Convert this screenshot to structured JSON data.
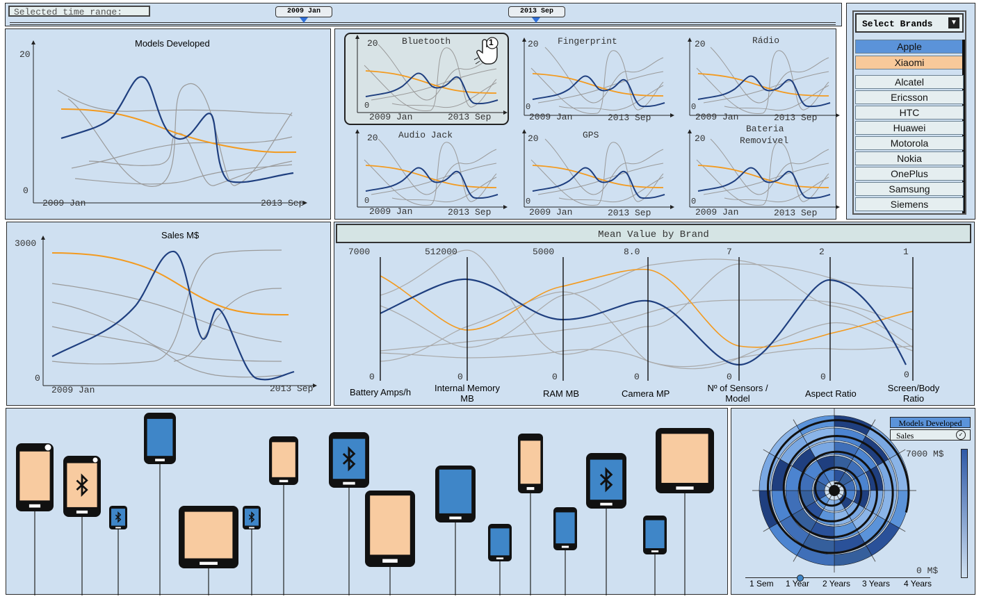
{
  "time_range": {
    "label": "Selected time range:",
    "start": "2009 Jan",
    "end": "2013 Sep"
  },
  "colors": {
    "panel": "#cfe0f1",
    "apple": "#1f3f7f",
    "xiaomi": "#f39a1e",
    "other": "#9a9a9a",
    "apple_highlight": "#5b93d9",
    "xiaomi_highlight": "#f8c99a",
    "device_blue": "#3f86c8",
    "device_peach": "#f8cba0"
  },
  "models_chart": {
    "title": "Models Developed",
    "y_max": "20",
    "y_min": "0",
    "x_start": "2009 Jan",
    "x_end": "2013 Sep"
  },
  "sales_chart": {
    "title": "Sales M$",
    "y_max": "3000",
    "y_min": "0",
    "x_start": "2009 Jan",
    "x_end": "2013 Sep"
  },
  "feature_charts": {
    "y_max": "20",
    "y_min": "0",
    "x_start": "2009 Jan",
    "x_end": "2013 Sep",
    "titles": [
      "Bluetooth",
      "Fingerprint",
      "Rádio",
      "Audio Jack",
      "GPS",
      "Bateria",
      "Removível"
    ],
    "pointer_badge": "1"
  },
  "brands": {
    "header": "Select Brands",
    "selected": [
      {
        "name": "Apple"
      },
      {
        "name": "Xiaomi"
      }
    ],
    "list": [
      "Alcatel",
      "Ericsson",
      "HTC",
      "Huawei",
      "Motorola",
      "Nokia",
      "OnePlus",
      "Samsung",
      "Siemens"
    ]
  },
  "mean_value": {
    "title": "Mean Value by Brand",
    "axes": [
      {
        "label": "Battery Amps/h",
        "max": "7000",
        "min": "0"
      },
      {
        "label": "Internal Memory MB",
        "max": "512000",
        "min": "0"
      },
      {
        "label": "RAM MB",
        "max": "5000",
        "min": "0"
      },
      {
        "label": "Camera MP",
        "max": "8.0",
        "min": "0"
      },
      {
        "label": "Nº of Sensors / Model",
        "max": "7",
        "min": "0"
      },
      {
        "label": "Aspect Ratio",
        "max": "2",
        "min": "0"
      },
      {
        "label": "Screen/Body Ratio",
        "max": "1",
        "min": "0"
      }
    ]
  },
  "spiral": {
    "options": [
      "Models Developed",
      "Sales"
    ],
    "scale_max": "7000  M$",
    "scale_min": "0  M$",
    "time_ticks": [
      "1 Sem",
      "1 Year",
      "2 Years",
      "3 Years",
      "4 Years"
    ]
  },
  "devices": [
    {
      "kind": "phone",
      "color": "peach",
      "bt": false
    },
    {
      "kind": "phone",
      "color": "peach",
      "bt": true
    },
    {
      "kind": "phone",
      "color": "blue",
      "bt": true
    },
    {
      "kind": "phone",
      "color": "blue",
      "bt": false
    },
    {
      "kind": "tablet",
      "color": "peach",
      "bt": false
    },
    {
      "kind": "phone",
      "color": "blue",
      "bt": true
    },
    {
      "kind": "phone",
      "color": "peach",
      "bt": false
    },
    {
      "kind": "phone",
      "color": "blue",
      "bt": true
    },
    {
      "kind": "tablet",
      "color": "peach",
      "bt": false
    },
    {
      "kind": "tablet",
      "color": "blue",
      "bt": false
    },
    {
      "kind": "phone",
      "color": "blue",
      "bt": false
    },
    {
      "kind": "phone",
      "color": "peach",
      "bt": false
    },
    {
      "kind": "phone",
      "color": "blue",
      "bt": false
    },
    {
      "kind": "phone",
      "color": "blue",
      "bt": true
    },
    {
      "kind": "phone",
      "color": "blue",
      "bt": false
    },
    {
      "kind": "tablet",
      "color": "peach",
      "bt": false
    }
  ]
}
